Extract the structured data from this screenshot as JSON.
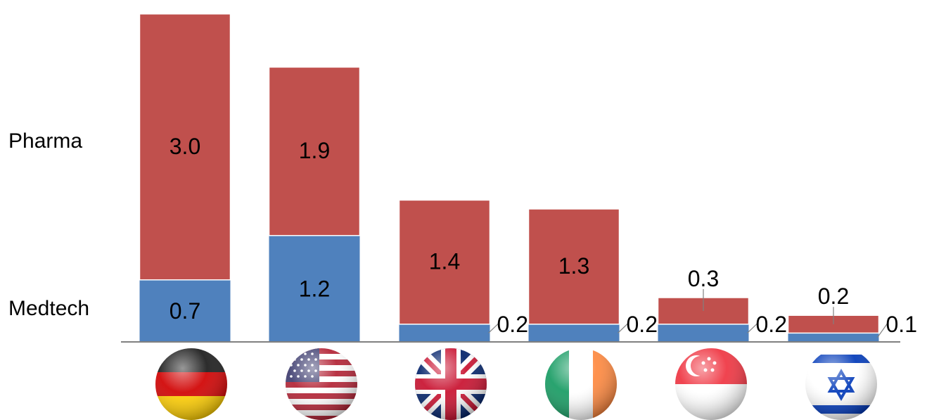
{
  "chart_data": {
    "type": "bar",
    "stacked": true,
    "categories": [
      "Germany",
      "United States",
      "United Kingdom",
      "Ireland",
      "Singapore",
      "Israel"
    ],
    "category_display": "flag-icons",
    "series": [
      {
        "name": "Medtech",
        "color": "#4F81BD",
        "values": [
          0.7,
          1.2,
          0.2,
          0.2,
          0.2,
          0.1
        ],
        "labels": [
          "0.7",
          "1.2",
          "0.2",
          "0.2",
          "0.2",
          "0.1"
        ]
      },
      {
        "name": "Pharma",
        "color": "#C0504D",
        "values": [
          3.0,
          1.9,
          1.4,
          1.3,
          0.3,
          0.2
        ],
        "labels": [
          "3.0",
          "1.9",
          "1.4",
          "1.3",
          "0.3",
          "0.2"
        ]
      }
    ],
    "legend": "left-side labels",
    "grid": false,
    "ylim": [
      0,
      3.7
    ]
  },
  "flags": [
    "germany-flag",
    "usa-flag",
    "uk-flag",
    "ireland-flag",
    "singapore-flag",
    "israel-flag"
  ],
  "colors": {
    "medtech": "#4F81BD",
    "pharma": "#C0504D",
    "axis": "#808080"
  }
}
